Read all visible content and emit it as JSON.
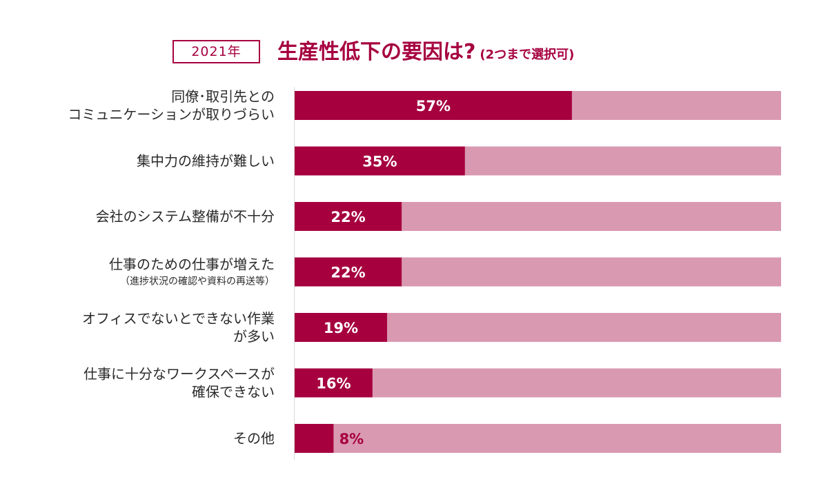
{
  "header": {
    "year_badge": "2021年",
    "title": "生産性低下の要因は?",
    "title_note": "(2つまで選択可)"
  },
  "colors": {
    "accent": "#a6003f",
    "track": "#d999b0",
    "label_text": "#2a2a2a",
    "axis_line": "#d9d9d9"
  },
  "chart_data": {
    "type": "bar",
    "orientation": "horizontal",
    "unit": "%",
    "xlim": [
      0,
      100
    ],
    "categories": [
      {
        "lines": [
          "同僚･取引先との",
          "コミュニケーションが取りづらい"
        ],
        "sub": ""
      },
      {
        "lines": [
          "集中力の維持が難しい"
        ],
        "sub": ""
      },
      {
        "lines": [
          "会社のシステム整備が不十分"
        ],
        "sub": ""
      },
      {
        "lines": [
          "仕事のための仕事が増えた"
        ],
        "sub": "（進捗状況の確認や資料の再送等）"
      },
      {
        "lines": [
          "オフィスでないとできない作業",
          "が多い"
        ],
        "sub": ""
      },
      {
        "lines": [
          "仕事に十分なワークスペースが",
          "確保できない"
        ],
        "sub": ""
      },
      {
        "lines": [
          "その他"
        ],
        "sub": ""
      }
    ],
    "values": [
      57,
      35,
      22,
      22,
      19,
      16,
      8
    ],
    "value_labels": [
      "57%",
      "35%",
      "22%",
      "22%",
      "19%",
      "16%",
      "8%"
    ]
  }
}
